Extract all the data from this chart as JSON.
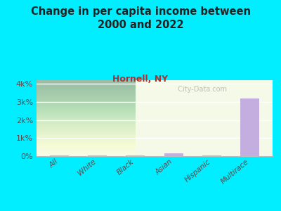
{
  "title": "Change in per capita income between\n2000 and 2022",
  "subtitle": "Hornell, NY",
  "categories": [
    "All",
    "White",
    "Black",
    "Asian",
    "Hispanic",
    "Multirace"
  ],
  "values": [
    50,
    40,
    20,
    160,
    55,
    3200
  ],
  "bar_color": "#c4aee0",
  "background_outer": "#00eeff",
  "background_plot_top": "#d6edb8",
  "background_plot_bottom": "#f5fae8",
  "title_color": "#222222",
  "subtitle_color": "#b03030",
  "tick_color": "#664444",
  "watermark": "  City-Data.com",
  "ylim": [
    0,
    4200
  ],
  "yticks": [
    0,
    1000,
    2000,
    3000,
    4000
  ]
}
